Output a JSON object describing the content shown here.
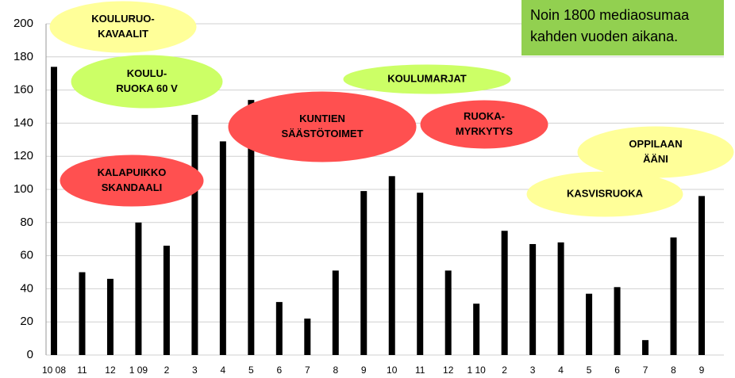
{
  "chart_data": {
    "type": "bar",
    "categories": [
      "10 08",
      "11",
      "12",
      "1 09",
      "2",
      "3",
      "4",
      "5",
      "6",
      "7",
      "8",
      "9",
      "10",
      "11",
      "12",
      "1 10",
      "2",
      "3",
      "4",
      "5",
      "6",
      "7",
      "8",
      "9"
    ],
    "values": [
      174,
      50,
      46,
      80,
      66,
      145,
      129,
      154,
      32,
      22,
      51,
      99,
      108,
      98,
      51,
      31,
      75,
      67,
      68,
      37,
      41,
      9,
      71,
      96
    ],
    "color": "#000000",
    "ylim": [
      0,
      200
    ],
    "yticks": [
      0,
      20,
      40,
      60,
      80,
      100,
      120,
      140,
      160,
      180,
      200
    ],
    "grid": true,
    "note": {
      "lines": [
        "Noin 1800 mediaosumaa",
        "kahden vuoden aikana."
      ],
      "color": "#92d050"
    },
    "annotations": [
      {
        "lines": [
          "KOULURUO-",
          "KAVAALIT"
        ],
        "color": "#ffff99"
      },
      {
        "lines": [
          "KOULU-",
          "RUOKA 60 V"
        ],
        "color": "#ccff66"
      },
      {
        "lines": [
          "KALAPUIKKO",
          "SKANDAALI"
        ],
        "color": "#ff5050"
      },
      {
        "lines": [
          "KUNTIEN",
          "SÄÄSTÖTOIMET"
        ],
        "color": "#ff5050"
      },
      {
        "lines": [
          "KOULUMARJAT"
        ],
        "color": "#ccff66"
      },
      {
        "lines": [
          "RUOKA-",
          "MYRKYTYS"
        ],
        "color": "#ff5050"
      },
      {
        "lines": [
          "OPPILAAN",
          "ÄÄNI"
        ],
        "color": "#ffff99"
      },
      {
        "lines": [
          "KASVISRUOKA"
        ],
        "color": "#ffff99"
      }
    ]
  }
}
